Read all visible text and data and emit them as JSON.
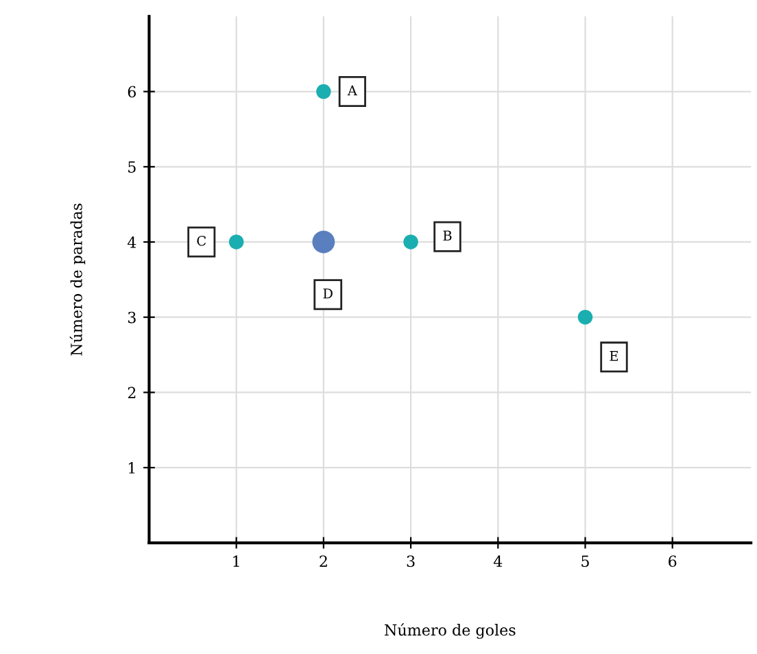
{
  "chart_data": {
    "type": "scatter",
    "xlabel": "Número de goles",
    "ylabel": "Número de paradas",
    "series": [
      {
        "color": "#1aaeb0",
        "x": [
          2,
          3,
          1,
          5
        ],
        "values": [
          6,
          4,
          4,
          3
        ]
      },
      {
        "color": "#5a7fbf",
        "x": [
          2
        ],
        "values": [
          4
        ]
      }
    ],
    "annotations": [
      {
        "text": "A",
        "x": 2.33,
        "y": 6
      },
      {
        "text": "B",
        "x": 3.42,
        "y": 4.07
      },
      {
        "text": "C",
        "x": 0.6,
        "y": 4
      },
      {
        "text": "D",
        "x": 2.05,
        "y": 3.3
      },
      {
        "text": "E",
        "x": 5.33,
        "y": 2.47
      }
    ],
    "xlim": [
      0,
      6.9
    ],
    "ylim": [
      0,
      7
    ],
    "xticks": [
      1,
      2,
      3,
      4,
      5,
      6
    ],
    "yticks": [
      1,
      2,
      3,
      4,
      5,
      6
    ],
    "grid": true,
    "marker": "circle"
  }
}
